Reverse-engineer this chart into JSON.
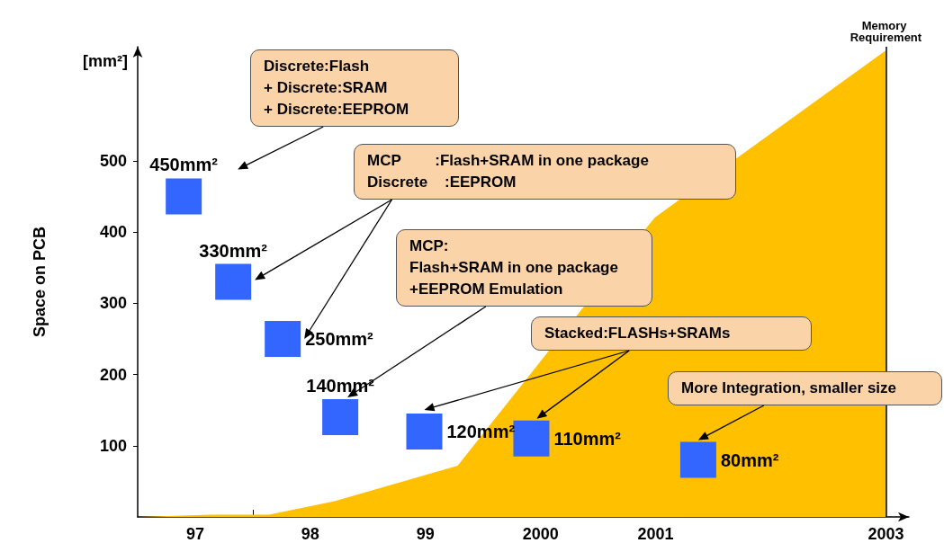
{
  "chart_data": {
    "type": "scatter",
    "ylabel": "Space on PCB",
    "xlim": [
      1996.5,
      2003.2
    ],
    "xticks": [
      {
        "value": 1997,
        "label": "97"
      },
      {
        "value": 1997.5,
        "label": null
      },
      {
        "value": 1998,
        "label": "98"
      },
      {
        "value": 1998.5,
        "label": null
      },
      {
        "value": 1999,
        "label": "99"
      },
      {
        "value": 1999.5,
        "label": null
      },
      {
        "value": 2000,
        "label": "2000"
      },
      {
        "value": 2000.5,
        "label": null
      },
      {
        "value": 2001,
        "label": "2001"
      },
      {
        "value": 2003,
        "label": "2003"
      }
    ],
    "ylim": [
      0,
      660
    ],
    "yticks": [
      100,
      200,
      300,
      400,
      500
    ],
    "grid": false,
    "series": [
      {
        "type": "area",
        "marker": "none",
        "color": "#ffc000",
        "x": [
          1996.51,
          1997.14,
          1997.64,
          1998.21,
          1999.28,
          2000.99,
          2003.0
        ],
        "values": [
          0,
          3,
          3,
          22,
          72,
          420,
          655
        ]
      },
      {
        "marker": "square",
        "color": "#3366ff",
        "x": [
          1996.9,
          1997.33,
          1997.76,
          1998.26,
          1998.99,
          1999.92,
          2001.37
        ],
        "values": [
          450,
          330,
          250,
          140,
          120,
          110,
          80
        ],
        "value_labels": [
          "450mm²",
          "330mm²",
          "250mm²",
          "140mm²",
          "120mm²",
          "110mm²",
          "80mm²"
        ]
      }
    ],
    "ref_lines": [
      {
        "axis": "x",
        "value": 2003.0,
        "label": "Memory Requirement",
        "color": "#000000"
      }
    ],
    "annotations": [
      "[mm²]",
      "Discrete:Flash\n+ Discrete:SRAM\n+ Discrete:EEPROM",
      "MCP        :Flash+SRAM in one package\nDiscrete    :EEPROM",
      "MCP:\nFlash+SRAM in one package\n+EEPROM Emulation",
      "Stacked:FLASHs+SRAMs",
      "More Integration, smaller size"
    ]
  }
}
